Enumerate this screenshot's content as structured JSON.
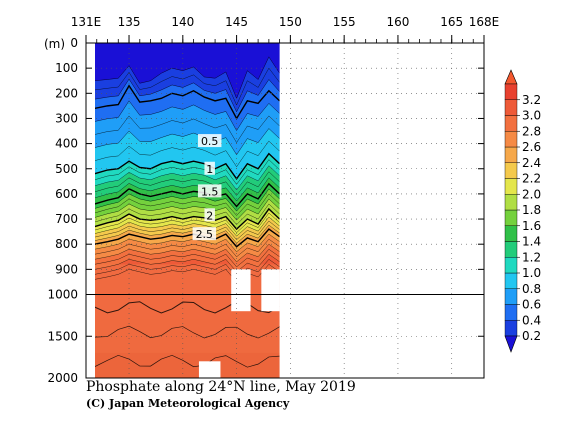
{
  "chart_data": {
    "type": "heatmap",
    "title": "Phosphate along 24°N line, May 2019",
    "credit": "(C) Japan Meteorological Agency",
    "y_unit_label": "(m)",
    "x_ticks": [
      "131E",
      "135",
      "140",
      "145",
      "150",
      "155",
      "160",
      "165",
      "168E"
    ],
    "x_tick_values": [
      131,
      135,
      140,
      145,
      150,
      155,
      160,
      165,
      168
    ],
    "x_range": [
      131,
      168
    ],
    "y_ticks_upper": [
      "0",
      "100",
      "200",
      "300",
      "400",
      "500",
      "600",
      "700",
      "800",
      "900",
      "1000"
    ],
    "y_ticks_upper_values": [
      0,
      100,
      200,
      300,
      400,
      500,
      600,
      700,
      800,
      900,
      1000
    ],
    "y_ticks_lower": [
      "1500",
      "2000"
    ],
    "y_ticks_lower_values": [
      1500,
      2000
    ],
    "y_break": 1000,
    "data_extent_lon": [
      131.8,
      149.0
    ],
    "contour_labels": [
      "0.5",
      "1",
      "1.5",
      "2",
      "2.5"
    ],
    "contour_label_values": [
      0.5,
      1,
      1.5,
      2,
      2.5
    ],
    "contour_label_lon": [
      142.5,
      142.5,
      142.5,
      142.5,
      142.0
    ],
    "contour_label_depth": [
      390,
      500,
      590,
      685,
      760
    ],
    "colorbar": {
      "labels": [
        "0.2",
        "0.4",
        "0.6",
        "0.8",
        "1.0",
        "1.2",
        "1.4",
        "1.6",
        "1.8",
        "2.0",
        "2.2",
        "2.4",
        "2.6",
        "2.8",
        "3.0",
        "3.2"
      ],
      "colors": [
        "#1a3fe0",
        "#1f6ef2",
        "#1f9ef7",
        "#22c6f0",
        "#20d9c0",
        "#22cc7a",
        "#30c048",
        "#74d13d",
        "#b0de44",
        "#e4e64c",
        "#f4c94c",
        "#f6a84a",
        "#f58a45",
        "#f2703f",
        "#ee5a38",
        "#e8412f"
      ],
      "below_color": "#1a10d6",
      "above_color": "#f4582e"
    },
    "profile": {
      "lon": [
        131.8,
        133,
        134,
        135,
        136,
        137,
        138,
        139,
        140,
        141,
        142,
        143,
        144,
        145,
        146,
        147,
        148,
        149
      ],
      "depth_0_2": [
        150,
        145,
        140,
        90,
        160,
        150,
        120,
        100,
        110,
        95,
        135,
        140,
        115,
        220,
        110,
        145,
        55,
        120
      ],
      "depth_0_5": [
        260,
        250,
        245,
        170,
        235,
        230,
        220,
        200,
        210,
        190,
        215,
        230,
        220,
        300,
        230,
        240,
        190,
        230
      ],
      "depth_1_0": [
        520,
        505,
        500,
        470,
        495,
        500,
        480,
        470,
        480,
        470,
        480,
        500,
        480,
        540,
        480,
        500,
        440,
        480
      ],
      "depth_1_5": [
        640,
        625,
        615,
        580,
        600,
        610,
        600,
        590,
        600,
        590,
        595,
        610,
        600,
        650,
        600,
        620,
        560,
        600
      ],
      "depth_2_0": [
        730,
        715,
        705,
        680,
        700,
        705,
        700,
        690,
        700,
        690,
        695,
        705,
        690,
        740,
        700,
        720,
        660,
        700
      ],
      "depth_2_5": [
        800,
        790,
        780,
        760,
        770,
        780,
        775,
        765,
        770,
        760,
        770,
        780,
        760,
        810,
        775,
        790,
        740,
        770
      ]
    },
    "missing_blocks": [
      {
        "lon": [
          144.5,
          146.3
        ],
        "depth": [
          900,
          1200
        ]
      },
      {
        "lon": [
          147.3,
          149.0
        ],
        "depth": [
          900,
          1200
        ]
      },
      {
        "lon": [
          141.5,
          143.5
        ],
        "depth": [
          1800,
          2000
        ]
      }
    ]
  }
}
